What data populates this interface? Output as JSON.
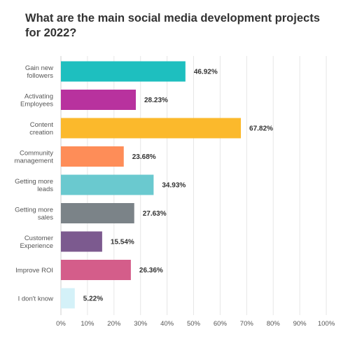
{
  "chart_data": {
    "type": "bar",
    "orientation": "horizontal",
    "title": "What are the main social media development projects for 2022?",
    "categories": [
      [
        "Gain new",
        "followers"
      ],
      [
        "Activating",
        "Employees"
      ],
      [
        "Content",
        "creation"
      ],
      [
        "Community",
        "management"
      ],
      [
        "Getting more",
        "leads"
      ],
      [
        "Getting more",
        "sales"
      ],
      [
        "Customer",
        "Experience"
      ],
      [
        "Improve ROI"
      ],
      [
        "I don't know"
      ]
    ],
    "values": [
      46.92,
      28.23,
      67.82,
      23.68,
      34.93,
      27.63,
      15.54,
      26.36,
      5.22
    ],
    "value_labels": [
      "46.92%",
      "28.23%",
      "67.82%",
      "23.68%",
      "34.93%",
      "27.63%",
      "15.54%",
      "26.36%",
      "5.22%"
    ],
    "colors": [
      "#1ebfbf",
      "#b8329e",
      "#fbb92c",
      "#fe8d58",
      "#6ac9cf",
      "#7b8388",
      "#7c5a8f",
      "#d45d8a",
      "#d4f1f8"
    ],
    "xlim": [
      0,
      100
    ],
    "xticks": [
      "0%",
      "10%",
      "20%",
      "30%",
      "40%",
      "50%",
      "60%",
      "70%",
      "80%",
      "90%",
      "100%"
    ],
    "grid": true
  }
}
